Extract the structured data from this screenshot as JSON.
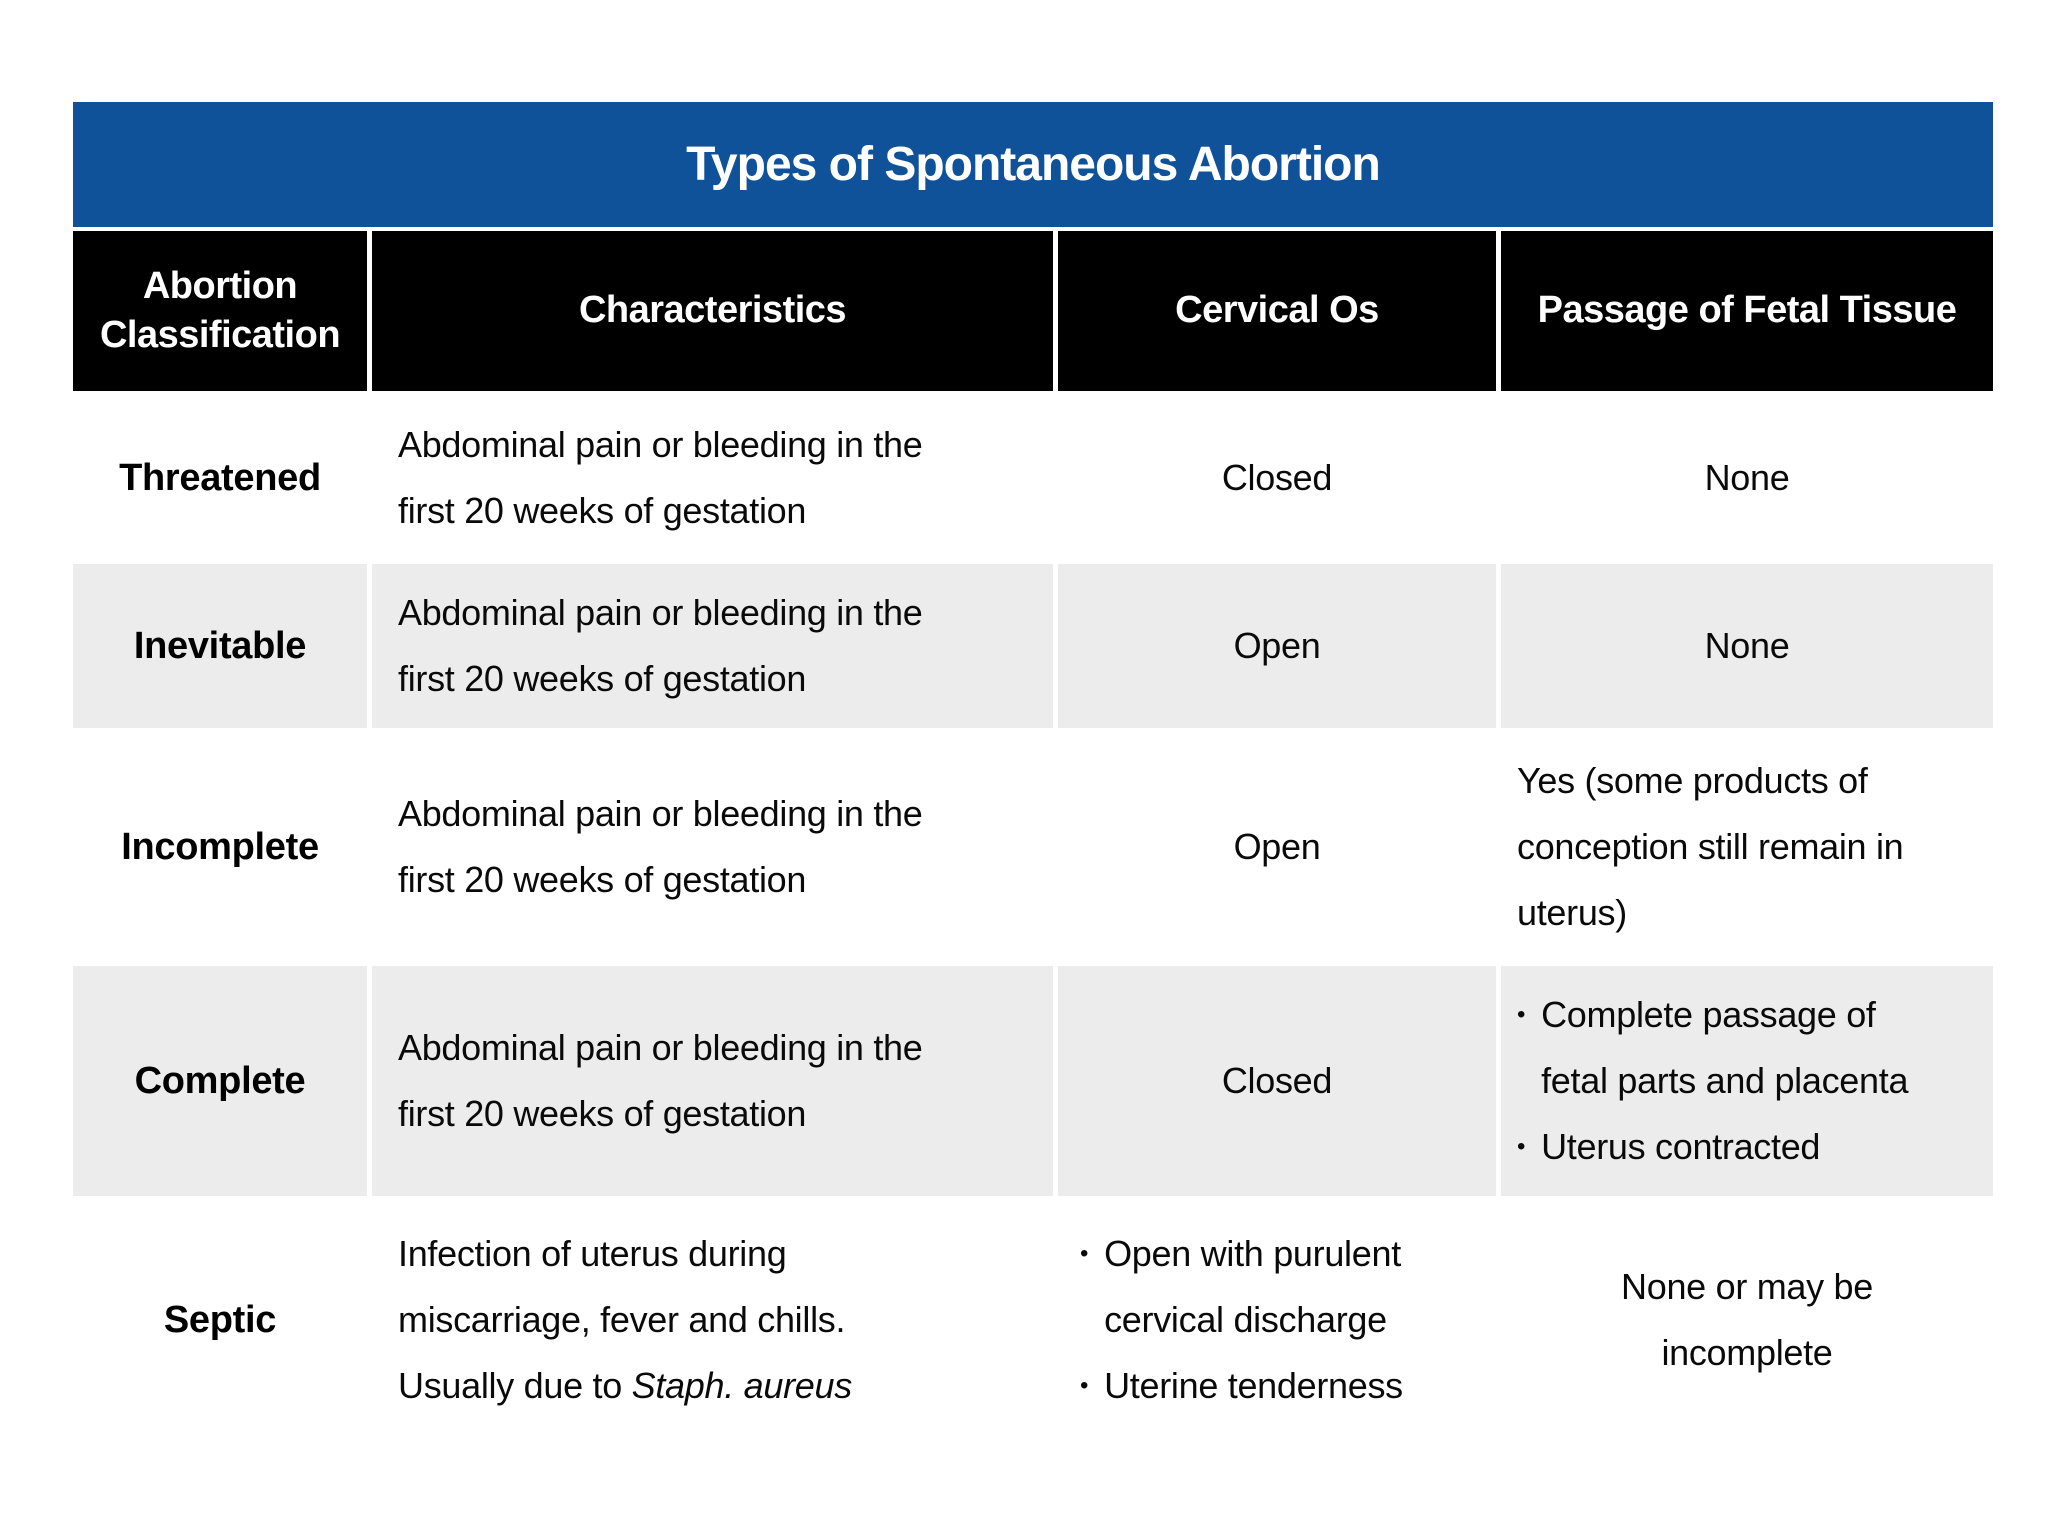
{
  "title": "Types of Spontaneous Abortion",
  "bullet_glyph": "•",
  "colors": {
    "title_bar": "#10529a",
    "title_text": "#ffffff",
    "header_bg": "#000000",
    "header_text": "#ffffff",
    "shaded_row": "#ececec",
    "page_bg": "#ffffff",
    "body_text": "#0a0a0a"
  },
  "table": {
    "headers": [
      "Abortion Classification",
      "Characteristics",
      "Cervical Os",
      "Passage of Fetal Tissue"
    ],
    "rows": [
      {
        "shaded": false,
        "cells": [
          {
            "kind": "label",
            "lines": [
              [
                "Threatened"
              ]
            ]
          },
          {
            "kind": "text",
            "align": "left",
            "lines": [
              [
                "Abdominal pain or bleeding in the"
              ],
              [
                "first 20 weeks of gestation"
              ]
            ]
          },
          {
            "kind": "text",
            "align": "center",
            "lines": [
              [
                "Closed"
              ]
            ]
          },
          {
            "kind": "text",
            "align": "center",
            "lines": [
              [
                "None"
              ]
            ]
          }
        ]
      },
      {
        "shaded": true,
        "cells": [
          {
            "kind": "label",
            "lines": [
              [
                "Inevitable"
              ]
            ]
          },
          {
            "kind": "text",
            "align": "left",
            "lines": [
              [
                "Abdominal pain or bleeding in the"
              ],
              [
                "first 20 weeks of gestation"
              ]
            ]
          },
          {
            "kind": "text",
            "align": "center",
            "lines": [
              [
                "Open"
              ]
            ]
          },
          {
            "kind": "text",
            "align": "center",
            "lines": [
              [
                "None"
              ]
            ]
          }
        ]
      },
      {
        "shaded": false,
        "cells": [
          {
            "kind": "label",
            "lines": [
              [
                "Incomplete"
              ]
            ]
          },
          {
            "kind": "text",
            "align": "left",
            "lines": [
              [
                "Abdominal pain or bleeding in the"
              ],
              [
                "first 20 weeks of gestation"
              ]
            ]
          },
          {
            "kind": "text",
            "align": "center",
            "lines": [
              [
                "Open"
              ]
            ]
          },
          {
            "kind": "text",
            "align": "left",
            "lines": [
              [
                "Yes (some products of"
              ],
              [
                "conception still remain in"
              ],
              [
                "uterus)"
              ]
            ]
          }
        ]
      },
      {
        "shaded": true,
        "cells": [
          {
            "kind": "label",
            "lines": [
              [
                "Complete"
              ]
            ]
          },
          {
            "kind": "text",
            "align": "left",
            "lines": [
              [
                "Abdominal pain or bleeding in the"
              ],
              [
                "first 20 weeks of gestation"
              ]
            ]
          },
          {
            "kind": "text",
            "align": "center",
            "lines": [
              [
                "Closed"
              ]
            ]
          },
          {
            "kind": "bullets",
            "align": "left",
            "items": [
              {
                "lines": [
                  [
                    "Complete passage of"
                  ],
                  [
                    "fetal parts and placenta"
                  ]
                ]
              },
              {
                "lines": [
                  [
                    "Uterus contracted"
                  ]
                ]
              }
            ]
          }
        ]
      },
      {
        "shaded": false,
        "cells": [
          {
            "kind": "label",
            "lines": [
              [
                "Septic"
              ]
            ]
          },
          {
            "kind": "text",
            "align": "left",
            "lines": [
              [
                "Infection of uterus during"
              ],
              [
                "miscarriage, fever and chills."
              ],
              [
                "Usually due to ",
                {
                  "text": "Staph. aureus",
                  "italic": true
                }
              ]
            ]
          },
          {
            "kind": "bullets",
            "align": "left",
            "items": [
              {
                "lines": [
                  [
                    "Open with purulent"
                  ],
                  [
                    "cervical discharge"
                  ]
                ]
              },
              {
                "lines": [
                  [
                    "Uterine tenderness"
                  ]
                ]
              }
            ]
          },
          {
            "kind": "text",
            "align": "center",
            "lines": [
              [
                "None or may be"
              ],
              [
                "incomplete"
              ]
            ]
          }
        ]
      }
    ]
  }
}
